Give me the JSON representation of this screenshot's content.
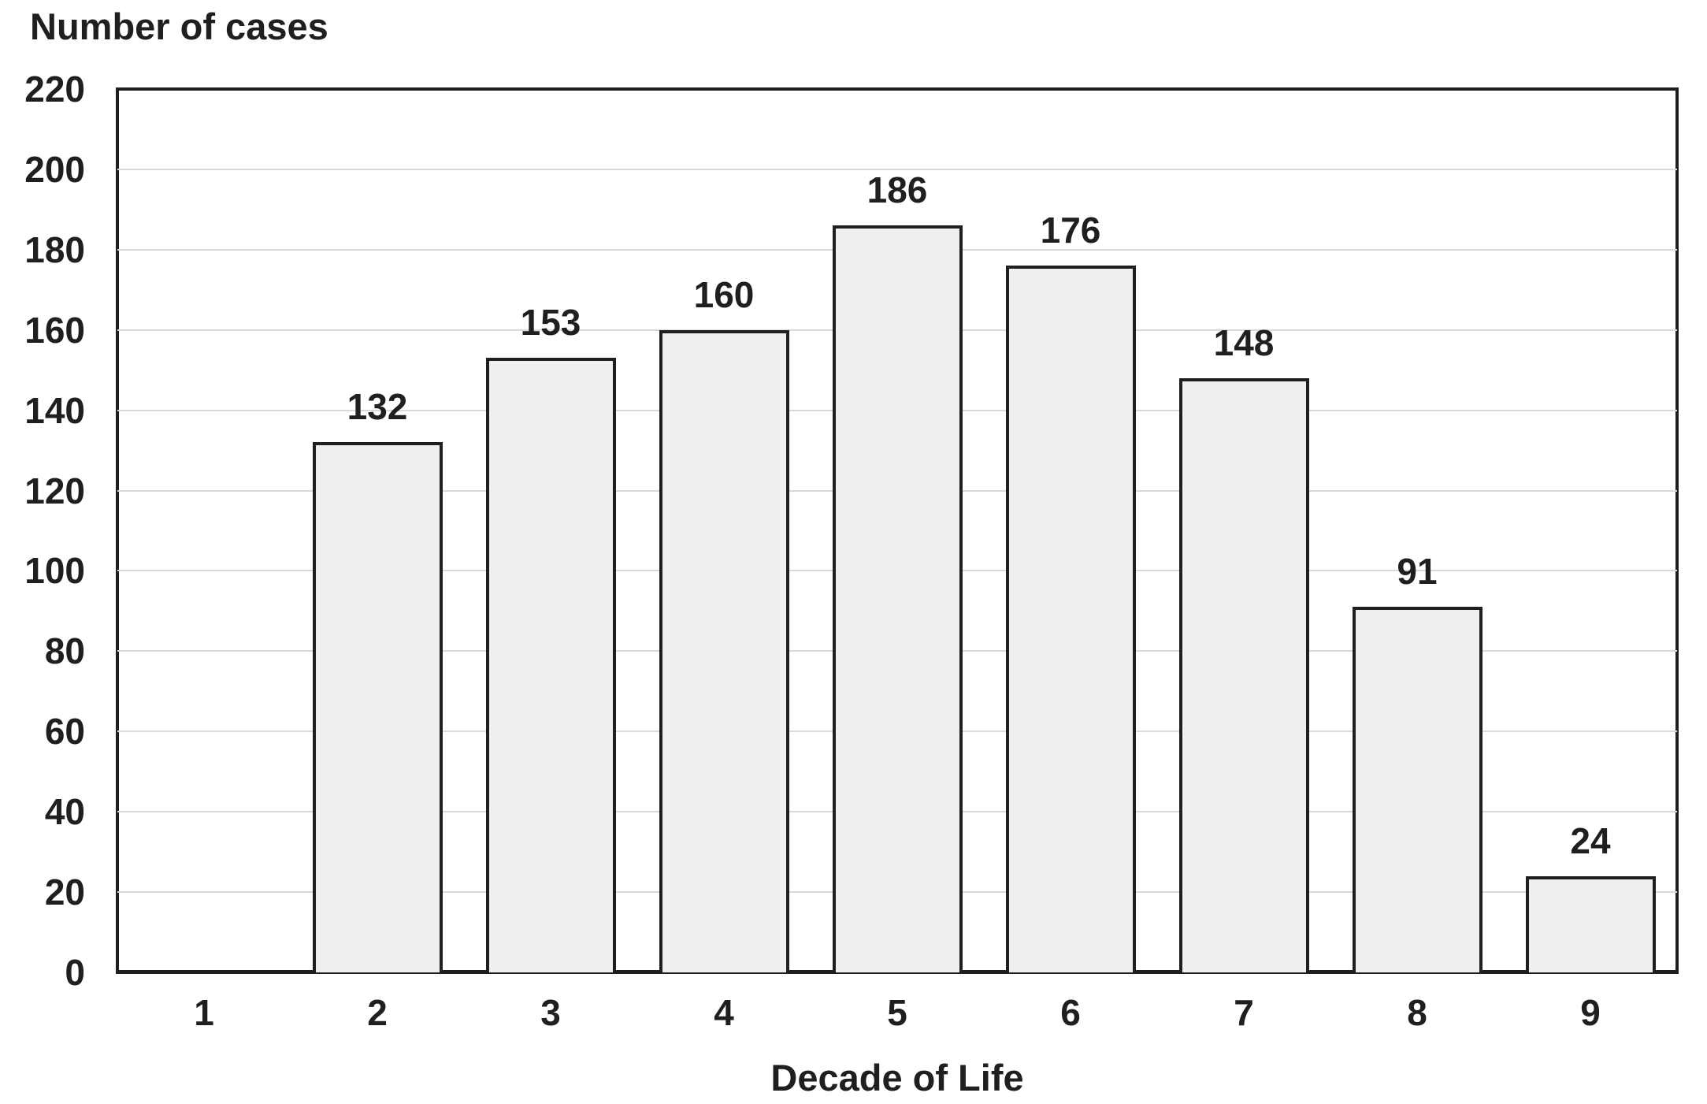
{
  "chart_data": {
    "type": "bar",
    "title": "",
    "ylabel": "Number of cases",
    "ylabel_position": "top-left",
    "xlabel": "Decade of Life",
    "categories": [
      "1",
      "2",
      "3",
      "4",
      "5",
      "6",
      "7",
      "8",
      "9"
    ],
    "values": [
      0,
      132,
      153,
      160,
      186,
      176,
      148,
      91,
      24
    ],
    "bar_labels": [
      "",
      "132",
      "153",
      "160",
      "186",
      "176",
      "148",
      "91",
      "24"
    ],
    "ylim": [
      0,
      220
    ],
    "ytick_step": 20,
    "yticks": [
      0,
      20,
      40,
      60,
      80,
      100,
      120,
      140,
      160,
      180,
      200,
      220
    ],
    "grid": true,
    "legend": "none",
    "bar_width_fraction": 0.75,
    "colors": {
      "bar_fill": "#efefef",
      "bar_border": "#1f1f1f",
      "gridline": "#d9d9d9",
      "axis": "#1f1f1f",
      "text": "#1f1f1f",
      "background": "#ffffff"
    }
  }
}
